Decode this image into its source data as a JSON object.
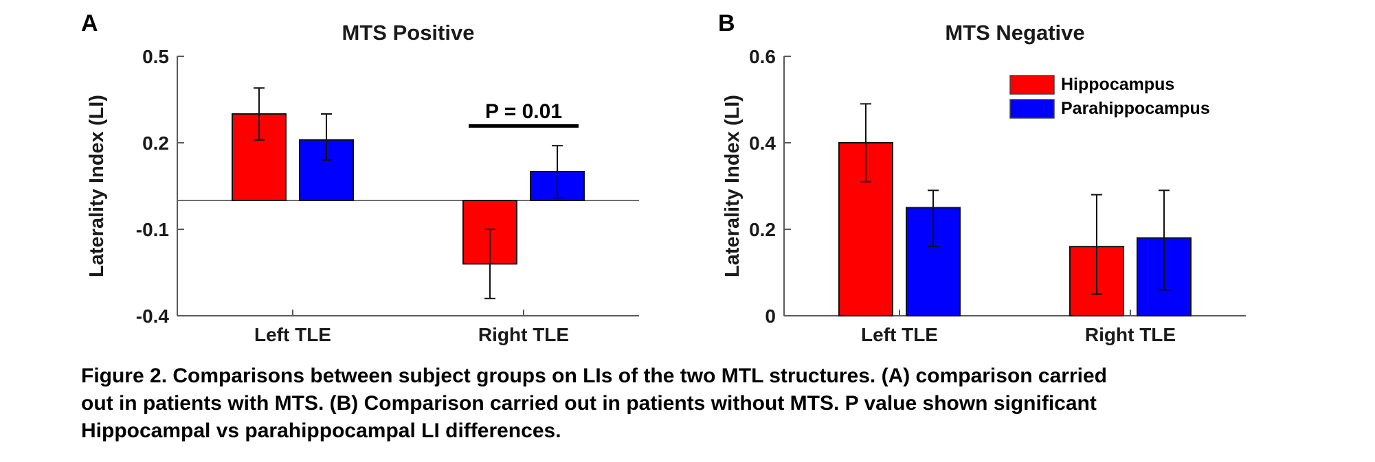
{
  "figure": {
    "caption_lines": [
      "Figure 2. Comparisons between subject groups on LIs of the two MTL structures. (A) comparison carried",
      "out in patients with MTS. (B) Comparison carried out in patients without MTS. P value shown significant",
      "Hippocampal vs parahippocampal LI differences."
    ]
  },
  "colors": {
    "hippocampus": "#ff0000",
    "parahippocampus": "#0000ff",
    "axis": "#595959",
    "annotation": "#000000"
  },
  "chart_data": [
    {
      "panel_label": "A",
      "type": "bar",
      "title": "MTS Positive",
      "ylabel": "Laterality Index (LI)",
      "xlabel": "",
      "categories": [
        "Left TLE",
        "Right TLE"
      ],
      "series": [
        {
          "name": "Hippocampus",
          "color": "#ff0000",
          "values": [
            0.3,
            -0.22
          ],
          "err_low": [
            0.21,
            -0.34
          ],
          "err_high": [
            0.39,
            -0.1
          ]
        },
        {
          "name": "Parahippocampus",
          "color": "#0000ff",
          "values": [
            0.21,
            0.1
          ],
          "err_low": [
            0.14,
            0.01
          ],
          "err_high": [
            0.3,
            0.19
          ]
        }
      ],
      "ylim": [
        -0.4,
        0.5
      ],
      "yticks": [
        0.5,
        0.2,
        -0.1,
        -0.4
      ],
      "grid": false,
      "zero_line": true,
      "legend": false,
      "annotation": {
        "text": "P = 0.01",
        "over_category": "Right TLE"
      }
    },
    {
      "panel_label": "B",
      "type": "bar",
      "title": "MTS Negative",
      "ylabel": "Laterality Index (LI)",
      "xlabel": "",
      "categories": [
        "Left TLE",
        "Right TLE"
      ],
      "series": [
        {
          "name": "Hippocampus",
          "color": "#ff0000",
          "values": [
            0.4,
            0.16
          ],
          "err_low": [
            0.31,
            0.05
          ],
          "err_high": [
            0.49,
            0.28
          ]
        },
        {
          "name": "Parahippocampus",
          "color": "#0000ff",
          "values": [
            0.25,
            0.18
          ],
          "err_low": [
            0.16,
            0.06
          ],
          "err_high": [
            0.29,
            0.29
          ]
        }
      ],
      "ylim": [
        0,
        0.6
      ],
      "yticks": [
        0.6,
        0.4,
        0.2,
        0
      ],
      "grid": false,
      "zero_line": false,
      "legend": true,
      "legend_position": "upper-right",
      "annotation": null
    }
  ]
}
